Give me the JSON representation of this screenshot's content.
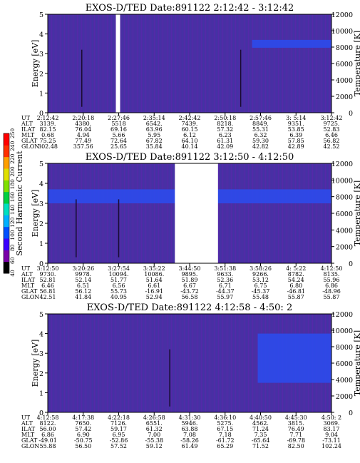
{
  "chart_data": [
    {
      "type": "heatmap",
      "title": "EXOS-D/TED  Date:891122  2:12:42 - 3:12:42",
      "ylabel": "Energy [eV]",
      "ylabel_right": "Temperature [K]",
      "ylim": [
        0,
        5
      ],
      "yticks": [
        "0",
        "1",
        "2",
        "3",
        "4",
        "5"
      ],
      "ylim_right": [
        0,
        12000
      ],
      "yticks_right": [
        "0",
        "2000",
        "4000",
        "6000",
        "8000",
        "10000",
        "12000"
      ],
      "orbit_labels": [
        "UT",
        "ALT",
        "ILAT",
        "MLT",
        "GLAT",
        "GLON"
      ],
      "orbit_columns": [
        [
          "2:12:42",
          "3139.",
          "82.15",
          "0.68",
          "75.25",
          "302.48"
        ],
        [
          "2:20:18",
          "4380.",
          "76.04",
          "4.94",
          "77.49",
          "357.56"
        ],
        [
          "2:27:46",
          "5518",
          "69.16",
          "5.66",
          "72.64",
          "25.65"
        ],
        [
          "2:35:14",
          "6542.",
          "63.96",
          "5.95",
          "67.82",
          "35.84"
        ],
        [
          "2:42:42",
          "7439.",
          "60.15",
          "6.12",
          "64.10",
          "40.14"
        ],
        [
          "2:50:18",
          "8218.",
          "57.32",
          "6.23",
          "61.31",
          "42.09"
        ],
        [
          "2:57:46",
          "8849.",
          "55.31",
          "6.32",
          "59.30",
          "42.82"
        ],
        [
          "3: 5:14",
          "9351.",
          "53.85",
          "6.39",
          "57.85",
          "42.89"
        ],
        [
          "3:12:42",
          "9725.",
          "52.83",
          "6.46",
          "56.82",
          "42.52"
        ]
      ],
      "data_gaps": [
        [
          0.24,
          0.255
        ]
      ],
      "bands": [
        {
          "x": [
            0.72,
            1.0
          ],
          "y": [
            3.3,
            3.7
          ],
          "level": 0.5
        }
      ],
      "spikes": [
        0.12,
        0.68
      ]
    },
    {
      "type": "heatmap",
      "title": "EXOS-D/TED  Date:891122  3:12:50 - 4:12:50",
      "ylabel": "Energy [eV]",
      "ylabel_right": "Temperature [K]",
      "ylim": [
        0,
        5
      ],
      "yticks": [
        "0",
        "1",
        "2",
        "3",
        "4",
        "5"
      ],
      "ylim_right": [
        0,
        12000
      ],
      "yticks_right": [
        "0",
        "2000",
        "4000",
        "6000",
        "8000",
        "10000",
        "12000"
      ],
      "orbit_labels": [
        "UT",
        "ALT",
        "ILAT",
        "MLT",
        "GLAT",
        "GLON"
      ],
      "orbit_columns": [
        [
          "3:12:50",
          "9730.",
          "52.81",
          "6.46",
          "56.81",
          "42.51"
        ],
        [
          "3:20:26",
          "9978.",
          "52.14",
          "6.51",
          "56.12",
          "41.84"
        ],
        [
          "3:27:54",
          "10094.",
          "51.77",
          "6.56",
          "55.73",
          "40.95"
        ],
        [
          "3:35:22",
          "10086.",
          "51.64",
          "6.61",
          "-16.91",
          "52.94"
        ],
        [
          "3:44:50",
          "9895.",
          "51.89",
          "6.67",
          "-43.72",
          "56.58"
        ],
        [
          "3:51:38",
          "9633.",
          "52.36",
          "6.71",
          "-44.37",
          "55.97"
        ],
        [
          "3:58:26",
          "9266.",
          "53.12",
          "6.75",
          "-45.37",
          "55.48"
        ],
        [
          "4: 5:22",
          "8782.",
          "54.24",
          "6.80",
          "-46.81",
          "55.87"
        ],
        [
          "4:12:50",
          "8135.",
          "55.96",
          "6.86",
          "-48.96",
          "55.87"
        ]
      ],
      "data_gaps": [
        [
          0.448,
          0.6
        ]
      ],
      "bands": [
        {
          "x": [
            0.0,
            1.0
          ],
          "y": [
            3.0,
            3.7
          ],
          "level": 0.5
        }
      ],
      "spikes": [
        0.1,
        0.25
      ],
      "colorbar": {
        "label": "Second Harmonic Current",
        "ticks": [
          "40",
          "60",
          "80",
          "100",
          "120",
          "140",
          "160",
          "180",
          "200",
          "220",
          "240",
          "250"
        ],
        "range": [
          40,
          250
        ],
        "colors": [
          "#000000",
          "#7a00a8",
          "#3a00ff",
          "#0050ff",
          "#00b0ff",
          "#00e0c0",
          "#00d040",
          "#80e000",
          "#e0e000",
          "#ffa000",
          "#ff3000",
          "#ff0000"
        ]
      }
    },
    {
      "type": "heatmap",
      "title": "EXOS-D/TED  Date:891122  4:12:58 - 4:50: 2",
      "ylabel": "Energy [eV]",
      "ylabel_right": "Temperature [K]",
      "ylim": [
        0,
        5
      ],
      "yticks": [
        "0",
        "1",
        "2",
        "3",
        "4",
        "5"
      ],
      "ylim_right": [
        0,
        12000
      ],
      "yticks_right": [
        "0",
        "2000",
        "4000",
        "6000",
        "8000",
        "10000",
        "12000"
      ],
      "orbit_labels": [
        "UT",
        "ALT",
        "ILAT",
        "MLT",
        "GLAT",
        "GLON"
      ],
      "orbit_columns": [
        [
          "4:12:58",
          "8122.",
          "56.00",
          "6.86",
          "-49.01",
          "55.88"
        ],
        [
          "4:17:38",
          "7650.",
          "57.42",
          "6.90",
          "-50.75",
          "56.50"
        ],
        [
          "4:22:18",
          "7126.",
          "59.17",
          "6.95",
          "-52.86",
          "57.52"
        ],
        [
          "4:26:58",
          "6551.",
          "61.32",
          "7.00",
          "-55.38",
          "59.12"
        ],
        [
          "4:31:30",
          "5946.",
          "63.88",
          "7.08",
          "-58.26",
          "61.49"
        ],
        [
          "4:36:10",
          "5275.",
          "67.15",
          "7.18",
          "-61.72",
          "65.29"
        ],
        [
          "4:40:50",
          "4562.",
          "71.24",
          "7.35",
          "-65.64",
          "71.52"
        ],
        [
          "4:45:30",
          "3815.",
          "76.49",
          "7.71",
          "-69.78",
          "82.50"
        ],
        [
          "4:50: 2",
          "3069.",
          "83.17",
          "9.04",
          "-73.11",
          "102.24"
        ]
      ],
      "data_gaps": [],
      "bands": [
        {
          "x": [
            0.74,
            1.0
          ],
          "y": [
            1.5,
            4.0
          ],
          "level": 0.6
        }
      ],
      "spikes": [
        0.43
      ]
    }
  ]
}
